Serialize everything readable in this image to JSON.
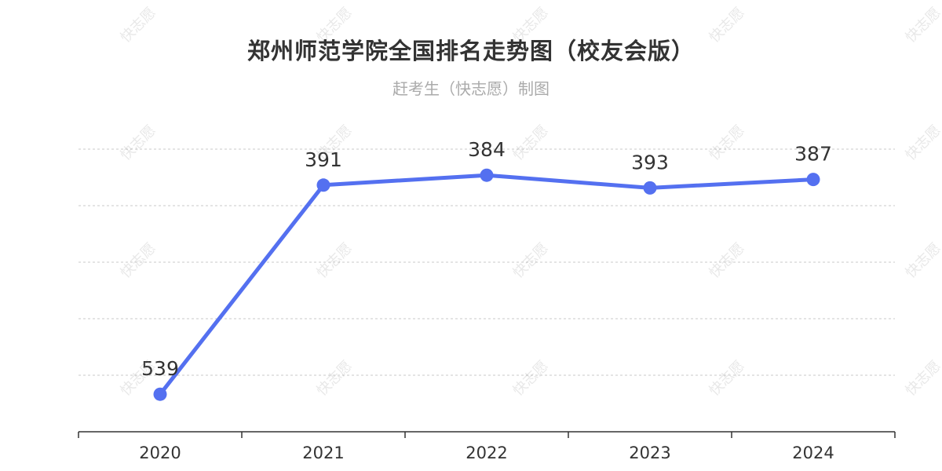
{
  "chart": {
    "title": "郑州师范学院全国排名走势图（校友会版）",
    "subtitle": "赶考生（快志愿）制图",
    "watermark_text": "快志愿"
  },
  "colors": {
    "line": "#5470f0",
    "grid": "#c8c8c8",
    "axis": "#333333",
    "label": "#333333"
  },
  "chart_data": {
    "type": "line",
    "categories": [
      "2020",
      "2021",
      "2022",
      "2023",
      "2024"
    ],
    "values": [
      539,
      391,
      384,
      393,
      387
    ],
    "title": "郑州师范学院全国排名走势图（校友会版）",
    "subtitle": "赶考生（快志愿）制图",
    "xlabel": "",
    "ylabel": "",
    "y_inverted": true,
    "ylim": [
      360,
      560
    ],
    "grid": true,
    "legend": "none",
    "data_labels": true
  }
}
